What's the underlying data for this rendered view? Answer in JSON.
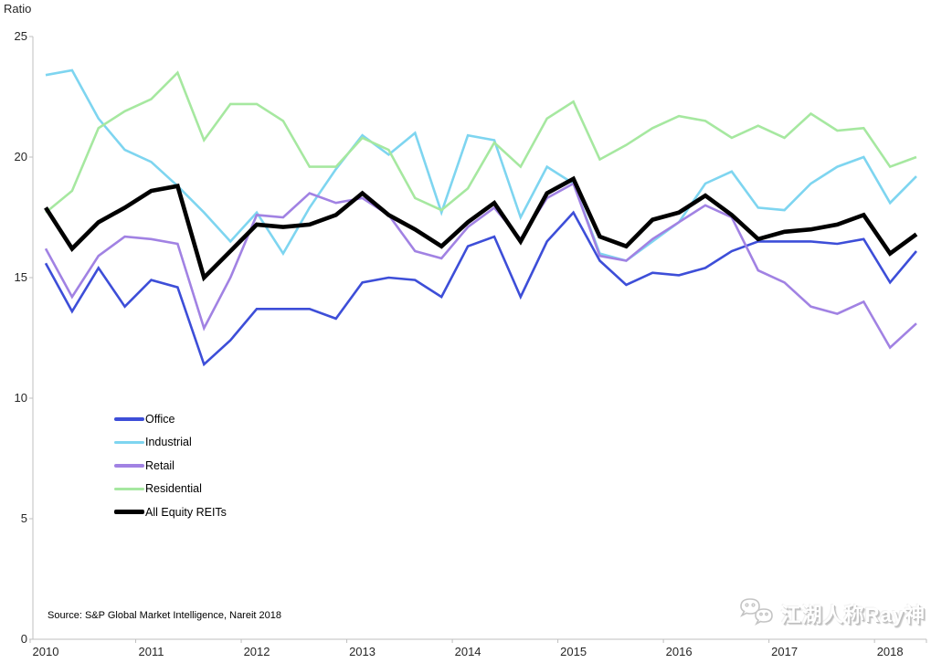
{
  "chart": {
    "title": "Ratio",
    "source_note": "Source: S&P Global Market Intelligence, Nareit 2018",
    "watermark_text": "江湖人称Ray神",
    "watermark_icon": "wechat-icon"
  },
  "chart_data": {
    "type": "line",
    "title": "Ratio",
    "xlabel": "",
    "ylabel": "Ratio",
    "ylim": [
      0,
      25
    ],
    "y_ticks": [
      0,
      5,
      10,
      15,
      20,
      25
    ],
    "x_tick_labels": [
      "2010",
      "2011",
      "2012",
      "2013",
      "2014",
      "2015",
      "2016",
      "2017",
      "2018"
    ],
    "grid": false,
    "legend_position": "middle-left",
    "categories": [
      "2010Q1",
      "2010Q2",
      "2010Q3",
      "2010Q4",
      "2011Q1",
      "2011Q2",
      "2011Q3",
      "2011Q4",
      "2012Q1",
      "2012Q2",
      "2012Q3",
      "2012Q4",
      "2013Q1",
      "2013Q2",
      "2013Q3",
      "2013Q4",
      "2014Q1",
      "2014Q2",
      "2014Q3",
      "2014Q4",
      "2015Q1",
      "2015Q2",
      "2015Q3",
      "2015Q4",
      "2016Q1",
      "2016Q2",
      "2016Q3",
      "2016Q4",
      "2017Q1",
      "2017Q2",
      "2017Q3",
      "2017Q4",
      "2018Q1",
      "2018Q2"
    ],
    "series": [
      {
        "name": "Office",
        "color": "#3d4ed8",
        "line_width": 2.6,
        "values": [
          15.6,
          13.6,
          15.4,
          13.8,
          14.9,
          14.6,
          11.4,
          12.4,
          13.7,
          13.7,
          13.7,
          13.3,
          14.8,
          15.0,
          14.9,
          14.2,
          16.3,
          16.7,
          14.2,
          16.5,
          17.7,
          15.7,
          14.7,
          15.2,
          15.1,
          15.4,
          16.1,
          16.5,
          16.5,
          16.5,
          16.4,
          16.6,
          14.8,
          16.1
        ]
      },
      {
        "name": "Industrial",
        "color": "#7ed5f0",
        "line_width": 2.6,
        "values": [
          23.4,
          23.6,
          21.6,
          20.3,
          19.8,
          18.8,
          17.7,
          16.5,
          17.7,
          16.0,
          17.9,
          19.5,
          20.9,
          20.1,
          21.0,
          17.7,
          20.9,
          20.7,
          17.5,
          19.6,
          18.9,
          16.0,
          15.7,
          16.5,
          17.3,
          18.9,
          19.4,
          17.9,
          17.8,
          18.9,
          19.6,
          20.0,
          18.1,
          19.2
        ]
      },
      {
        "name": "Retail",
        "color": "#a182e3",
        "line_width": 2.6,
        "values": [
          16.2,
          14.2,
          15.9,
          16.7,
          16.6,
          16.4,
          12.9,
          15.0,
          17.6,
          17.5,
          18.5,
          18.1,
          18.3,
          17.6,
          16.1,
          15.8,
          17.1,
          17.9,
          16.6,
          18.3,
          18.9,
          15.9,
          15.7,
          16.6,
          17.3,
          18.0,
          17.5,
          15.3,
          14.8,
          13.8,
          13.5,
          14.0,
          12.1,
          13.1
        ]
      },
      {
        "name": "Residential",
        "color": "#a6e8a0",
        "line_width": 2.6,
        "values": [
          17.7,
          18.6,
          21.2,
          21.9,
          22.4,
          23.5,
          20.7,
          22.2,
          22.2,
          21.5,
          19.6,
          19.6,
          20.8,
          20.3,
          18.3,
          17.8,
          18.7,
          20.6,
          19.6,
          21.6,
          22.3,
          19.9,
          20.5,
          21.2,
          21.7,
          21.5,
          20.8,
          21.3,
          20.8,
          21.8,
          21.1,
          21.2,
          19.6,
          20.0
        ]
      },
      {
        "name": "All Equity REITs",
        "color": "#000000",
        "line_width": 4.6,
        "values": [
          17.9,
          16.2,
          17.3,
          17.9,
          18.6,
          18.8,
          15.0,
          16.1,
          17.2,
          17.1,
          17.2,
          17.6,
          18.5,
          17.6,
          17.0,
          16.3,
          17.3,
          18.1,
          16.5,
          18.5,
          19.1,
          16.7,
          16.3,
          17.4,
          17.7,
          18.4,
          17.6,
          16.6,
          16.9,
          17.0,
          17.2,
          17.6,
          16.0,
          16.8
        ]
      }
    ]
  }
}
